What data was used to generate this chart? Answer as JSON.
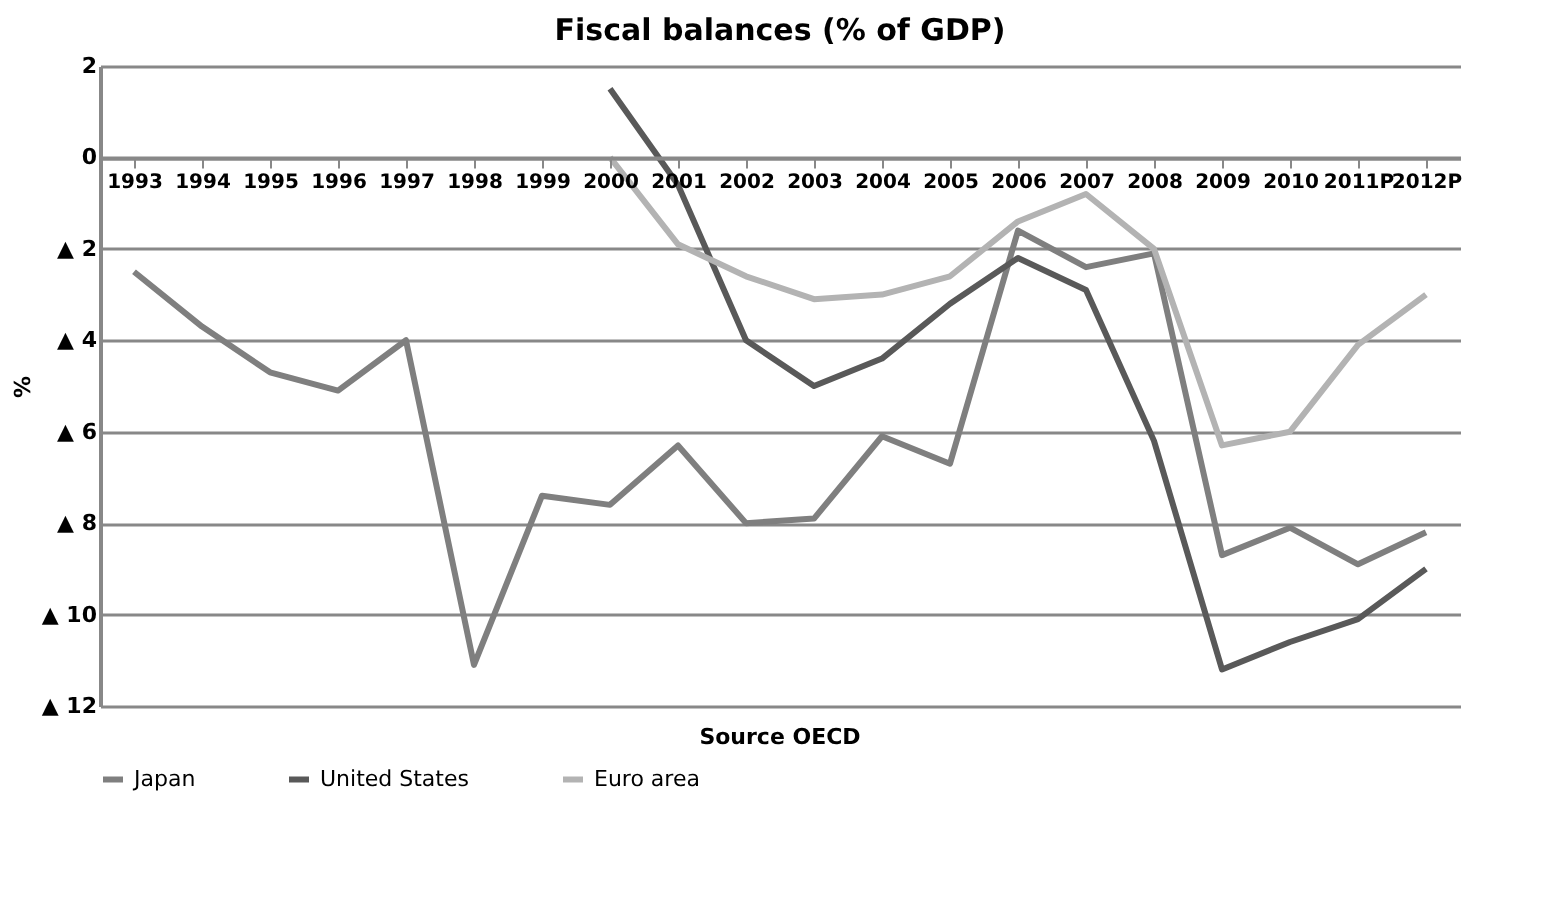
{
  "chart_data": {
    "type": "line",
    "title": "Fiscal balances (% of GDP)",
    "ylabel": "%",
    "annotations": [
      "Source OECD"
    ],
    "categories": [
      "1993",
      "1994",
      "1995",
      "1996",
      "1997",
      "1998",
      "1999",
      "2000",
      "2001",
      "2002",
      "2003",
      "2004",
      "2005",
      "2006",
      "2007",
      "2008",
      "2009",
      "2010",
      "2011P",
      "2012P"
    ],
    "series": [
      {
        "name": "Japan",
        "color": "#7f7f7f",
        "values": [
          -2.5,
          -3.7,
          -4.7,
          -5.1,
          -4.0,
          -11.1,
          -7.4,
          -7.6,
          -6.3,
          -8.0,
          -7.9,
          -6.1,
          -6.7,
          -1.6,
          -2.4,
          -2.1,
          -8.7,
          -8.1,
          -8.9,
          -8.2
        ]
      },
      {
        "name": "United States",
        "color": "#595959",
        "values": [
          null,
          null,
          null,
          null,
          null,
          null,
          null,
          1.5,
          -0.6,
          -4.0,
          -5.0,
          -4.4,
          -3.2,
          -2.2,
          -2.9,
          -6.2,
          -11.2,
          -10.6,
          -10.1,
          -9.0
        ]
      },
      {
        "name": "Euro area",
        "color": "#b3b3b3",
        "values": [
          null,
          null,
          null,
          null,
          null,
          null,
          null,
          0.0,
          -1.9,
          -2.6,
          -3.1,
          -3.0,
          -2.6,
          -1.4,
          -0.8,
          -2.0,
          -6.3,
          -6.0,
          -4.1,
          -3.0
        ]
      }
    ],
    "ylim": [
      -12,
      2
    ],
    "yticks": [
      2,
      0,
      {
        "value": -2,
        "label": "▲ 2"
      },
      {
        "value": -4,
        "label": "▲ 4"
      },
      {
        "value": -6,
        "label": "▲ 6"
      },
      {
        "value": -8,
        "label": "▲ 8"
      },
      {
        "value": -10,
        "label": "▲ 10"
      },
      {
        "value": -12,
        "label": "▲ 12"
      }
    ],
    "grid": "y",
    "legend": "bottom",
    "marker": "none",
    "line_style": "solid"
  }
}
